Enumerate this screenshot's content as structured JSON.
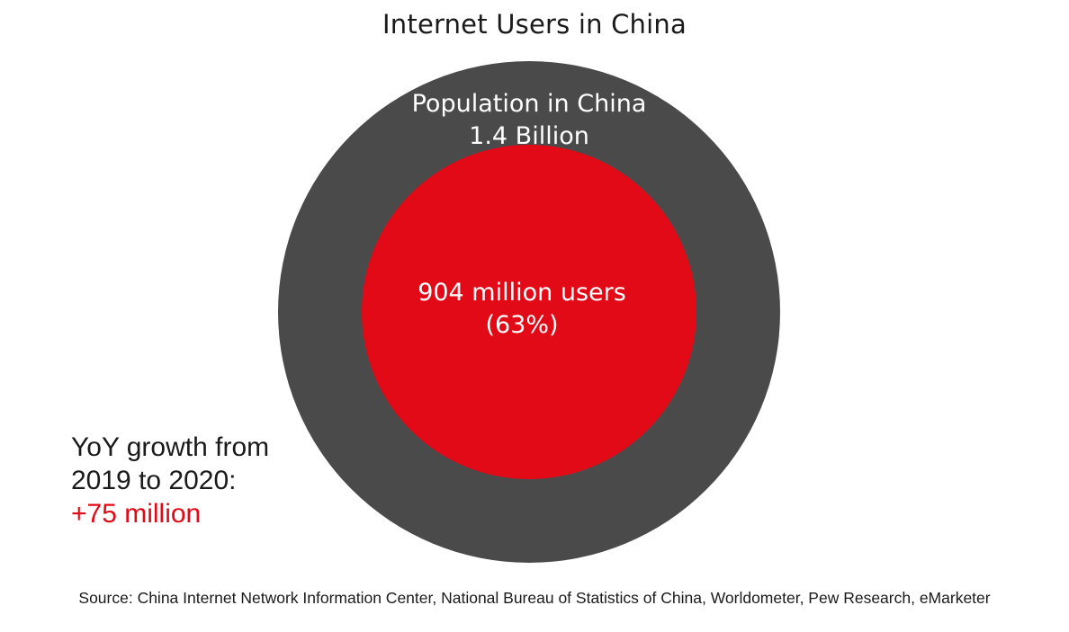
{
  "chart_data": {
    "type": "pie",
    "title": "Internet Users in China",
    "outer": {
      "label": "Population in China",
      "value_label": "1.4 Billion",
      "value": 1.4,
      "unit": "billion",
      "color": "#4a4a4a"
    },
    "inner": {
      "label": "904 million users",
      "share_label": "(63%)",
      "value": 904,
      "unit": "million",
      "share": 0.63,
      "color": "#e30a17"
    }
  },
  "annotation": {
    "line1": "YoY growth from",
    "line2": "2019 to 2020:",
    "value": "+75 million",
    "value_color": "#e30a17"
  },
  "source": "Source: China Internet Network Information Center, National Bureau of Statistics of China, Worldometer, Pew Research, eMarketer"
}
